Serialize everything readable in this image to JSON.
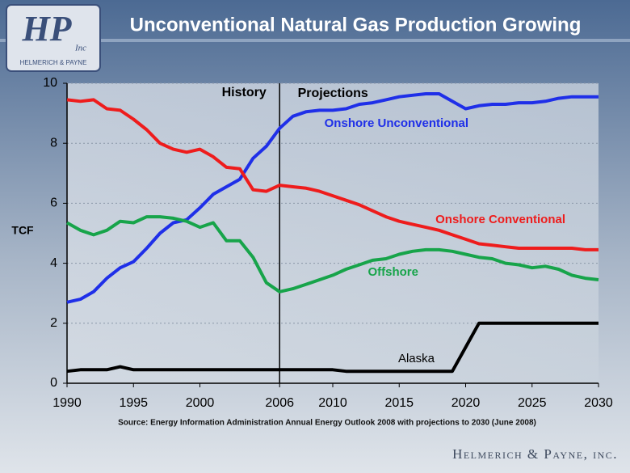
{
  "logo": {
    "initials": "HP",
    "company": "HELMERICH & PAYNE",
    "suffix": "Inc"
  },
  "footer": "Helmerich & Payne, inc.",
  "chart_data": {
    "type": "line",
    "title": "Unconventional Natural Gas Production Growing",
    "ylabel": "TCF",
    "source": "Source: Energy Information Administration Annual Energy Outlook 2008 with projections to 2030 (June 2008)",
    "annotations": [
      "History",
      "Projections"
    ],
    "x": [
      1990,
      1991,
      1992,
      1993,
      1994,
      1995,
      1996,
      1997,
      1998,
      1999,
      2000,
      2001,
      2002,
      2003,
      2004,
      2005,
      2006,
      2007,
      2008,
      2009,
      2010,
      2011,
      2012,
      2013,
      2014,
      2015,
      2016,
      2017,
      2018,
      2019,
      2020,
      2021,
      2022,
      2023,
      2024,
      2025,
      2026,
      2027,
      2028,
      2029,
      2030
    ],
    "xlim": [
      1990,
      2030
    ],
    "xticks": [
      1990,
      1995,
      2000,
      2006,
      2010,
      2015,
      2020,
      2025,
      2030
    ],
    "ylim": [
      0,
      10
    ],
    "yticks": [
      0,
      2,
      4,
      6,
      8,
      10
    ],
    "grid": true,
    "series": [
      {
        "name": "Onshore Unconventional",
        "color": "#1f2fe8",
        "values": [
          2.7,
          2.8,
          3.05,
          3.5,
          3.85,
          4.05,
          4.5,
          5.0,
          5.35,
          5.45,
          5.85,
          6.3,
          6.55,
          6.8,
          7.5,
          7.9,
          8.5,
          8.9,
          9.05,
          9.1,
          9.1,
          9.15,
          9.3,
          9.35,
          9.45,
          9.55,
          9.6,
          9.65,
          9.65,
          9.4,
          9.15,
          9.25,
          9.3,
          9.3,
          9.35,
          9.35,
          9.4,
          9.5,
          9.55,
          9.55,
          9.55
        ]
      },
      {
        "name": "Onshore Conventional",
        "color": "#ee1c1c",
        "values": [
          9.45,
          9.4,
          9.45,
          9.15,
          9.1,
          8.8,
          8.45,
          8.0,
          7.8,
          7.7,
          7.8,
          7.55,
          7.2,
          7.15,
          6.45,
          6.4,
          6.6,
          6.55,
          6.5,
          6.4,
          6.25,
          6.1,
          5.95,
          5.75,
          5.55,
          5.4,
          5.3,
          5.2,
          5.1,
          4.95,
          4.8,
          4.65,
          4.6,
          4.55,
          4.5,
          4.5,
          4.5,
          4.5,
          4.5,
          4.45,
          4.45
        ]
      },
      {
        "name": "Offshore",
        "color": "#17a44a",
        "values": [
          5.35,
          5.1,
          4.95,
          5.1,
          5.4,
          5.35,
          5.55,
          5.55,
          5.5,
          5.4,
          5.2,
          5.35,
          4.75,
          4.75,
          4.2,
          3.35,
          3.05,
          3.15,
          3.3,
          3.45,
          3.6,
          3.8,
          3.95,
          4.1,
          4.15,
          4.3,
          4.4,
          4.45,
          4.45,
          4.4,
          4.3,
          4.2,
          4.15,
          4.0,
          3.95,
          3.85,
          3.9,
          3.8,
          3.6,
          3.5,
          3.45
        ]
      },
      {
        "name": "Alaska",
        "color": "#000000",
        "values": [
          0.4,
          0.45,
          0.45,
          0.45,
          0.55,
          0.45,
          0.45,
          0.45,
          0.45,
          0.45,
          0.45,
          0.45,
          0.45,
          0.45,
          0.45,
          0.45,
          0.45,
          0.45,
          0.45,
          0.45,
          0.45,
          0.4,
          0.4,
          0.4,
          0.4,
          0.4,
          0.4,
          0.4,
          0.4,
          0.4,
          1.2,
          2.0,
          2.0,
          2.0,
          2.0,
          2.0,
          2.0,
          2.0,
          2.0,
          2.0,
          2.0
        ]
      }
    ]
  }
}
